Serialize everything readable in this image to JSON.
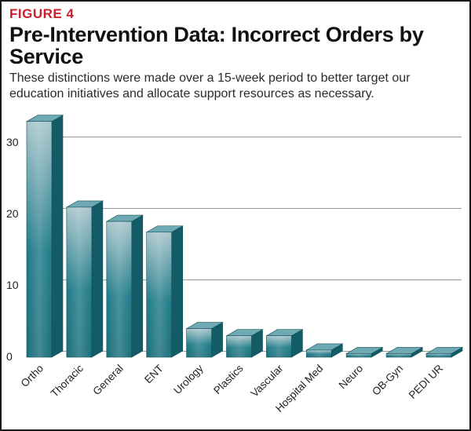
{
  "figure": {
    "label": "FIGURE 4",
    "title": "Pre-Intervention Data: Incorrect Orders by Service",
    "subtitle": "These distinctions were made over a 15-week period to better target our education initiatives and allocate support resources as necessary."
  },
  "colors": {
    "label_red": "#c8202c",
    "bar_front": "#1f7b89",
    "bar_front_light": "#a9c6cc",
    "bar_side": "#135c67",
    "bar_top": "#6fa9b3",
    "gridline": "#9a9a9a"
  },
  "chart_data": {
    "type": "bar",
    "categories": [
      "Ortho",
      "Thoracic",
      "General",
      "ENT",
      "Urology",
      "Plastics",
      "Vascular",
      "Hospital Med",
      "Neuro",
      "OB-Gyn",
      "PEDI UR"
    ],
    "values": [
      33,
      21,
      19,
      17.5,
      4,
      3,
      3,
      1,
      0.5,
      0.5,
      0.5
    ],
    "yticks": [
      0,
      10,
      20,
      30
    ],
    "ylim": [
      0,
      33
    ],
    "grid": true,
    "style": "3d"
  }
}
